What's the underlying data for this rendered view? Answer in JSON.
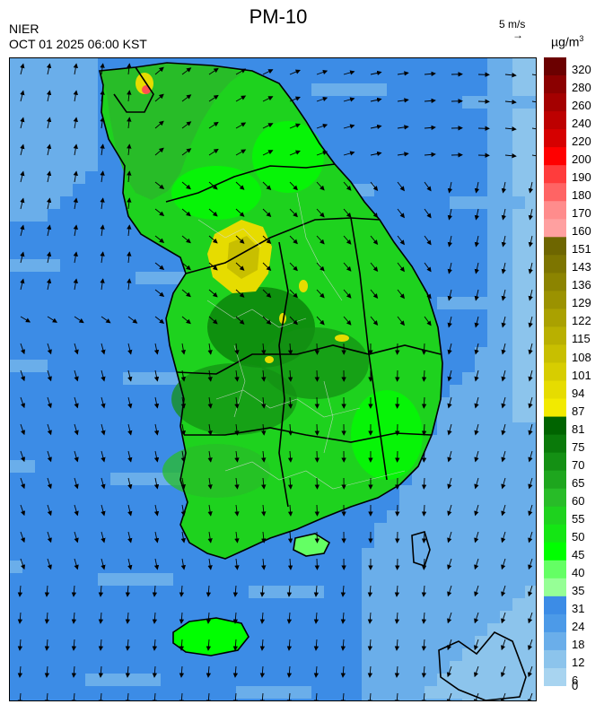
{
  "header": {
    "title": "PM-10",
    "agency": "NIER",
    "timestamp": "OCT 01 2025 06:00 KST",
    "wind_reference_label": "5 m/s",
    "wind_reference_arrow": "→",
    "unit": "µg/m",
    "unit_exponent": "3"
  },
  "legend": {
    "labels": [
      "320",
      "280",
      "260",
      "240",
      "220",
      "200",
      "190",
      "180",
      "170",
      "160",
      "151",
      "143",
      "136",
      "129",
      "122",
      "115",
      "108",
      "101",
      "94",
      "87",
      "81",
      "75",
      "70",
      "65",
      "60",
      "55",
      "50",
      "45",
      "40",
      "35",
      "31",
      "24",
      "18",
      "12",
      "6",
      "0"
    ],
    "colors": [
      "#6b0000",
      "#8b0000",
      "#a40000",
      "#bd0000",
      "#d60000",
      "#ff0000",
      "#ff3c3c",
      "#ff6464",
      "#ff8c8c",
      "#ffa0a0",
      "#6e6600",
      "#7d7500",
      "#8c8400",
      "#9b9200",
      "#aaa100",
      "#b9b000",
      "#c8bf00",
      "#d7cd00",
      "#e6dc00",
      "#f2ea00",
      "#006400",
      "#0a7a0a",
      "#149014",
      "#1ea61e",
      "#28bc28",
      "#1ed21e",
      "#14e614",
      "#00ff00",
      "#64ff64",
      "#96ff96",
      "#3c8ce6",
      "#4c9ae8",
      "#6aaeea",
      "#8cc4ec",
      "#a8d4f0"
    ]
  },
  "map": {
    "sea_colors": [
      "#3c8ce6",
      "#6aaeea",
      "#8cc4ec"
    ],
    "land_colors": [
      "#1ed21e",
      "#00ff00",
      "#28bc28",
      "#149014",
      "#0a7a0a",
      "#64ff64"
    ],
    "hotspot_color": "#e6dc00",
    "hotspot_dark": "#c8bf00",
    "red_color": "#ff5050"
  }
}
